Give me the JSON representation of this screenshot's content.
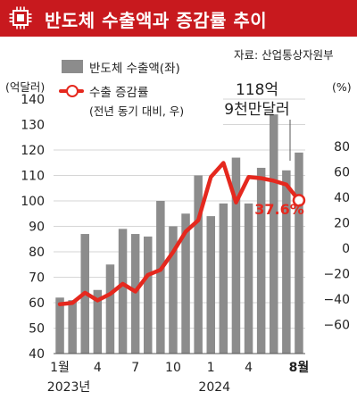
{
  "header": {
    "title": "반도체 수출액과 증감률 추이",
    "icon": "chip-icon"
  },
  "source": "자료: 산업통상자원부",
  "legend": {
    "bar_label": "반도체 수출액(좌)",
    "line_label": "수출 증감률",
    "line_sublabel": "(전년 동기 대비, 우)"
  },
  "colors": {
    "header": "#c8191e",
    "bars": "#8c8c8c",
    "line": "#e5281e",
    "highlight": "#e5281e"
  },
  "chart_data": {
    "type": "bar",
    "left_unit": "(억달러)",
    "right_unit": "(%)",
    "ylim_left": [
      40,
      140
    ],
    "ylim_right": [
      -60,
      80
    ],
    "left_ticks": [
      40,
      50,
      60,
      70,
      80,
      90,
      100,
      110,
      120,
      130,
      140
    ],
    "right_ticks": [
      -60,
      -40,
      -20,
      0,
      20,
      40,
      60,
      80
    ],
    "x_tick_labels": [
      {
        "index": 0,
        "label": "1월"
      },
      {
        "index": 3,
        "label": "4"
      },
      {
        "index": 6,
        "label": "7"
      },
      {
        "index": 9,
        "label": "10"
      },
      {
        "index": 12,
        "label": "1"
      },
      {
        "index": 15,
        "label": "4"
      },
      {
        "index": 19,
        "label": "8월"
      }
    ],
    "year_labels": [
      {
        "index": 0,
        "label": "2023년"
      },
      {
        "index": 12,
        "label": "2024"
      }
    ],
    "categories": [
      "2023-01",
      "2023-02",
      "2023-03",
      "2023-04",
      "2023-05",
      "2023-06",
      "2023-07",
      "2023-08",
      "2023-09",
      "2023-10",
      "2023-11",
      "2023-12",
      "2024-01",
      "2024-02",
      "2024-03",
      "2024-04",
      "2024-05",
      "2024-06",
      "2024-07",
      "2024-08"
    ],
    "series": [
      {
        "name": "반도체 수출액(좌)",
        "axis": "left",
        "kind": "bar",
        "values": [
          62,
          61,
          87,
          65,
          75,
          89,
          87,
          86,
          100,
          90,
          95,
          110,
          94,
          99,
          117,
          99,
          113,
          134,
          112,
          119
        ]
      },
      {
        "name": "수출 증감률",
        "axis": "right",
        "kind": "line",
        "values": [
          -44,
          -43,
          -35,
          -41,
          -36,
          -28,
          -34,
          -21,
          -17,
          -3,
          13,
          22,
          56,
          67,
          36,
          56,
          55,
          53,
          50,
          37.6
        ]
      }
    ],
    "annotations": {
      "last_bar_value_line1": "118억",
      "last_bar_value_line2": "9천만달러",
      "last_rate": "37.6%"
    }
  }
}
